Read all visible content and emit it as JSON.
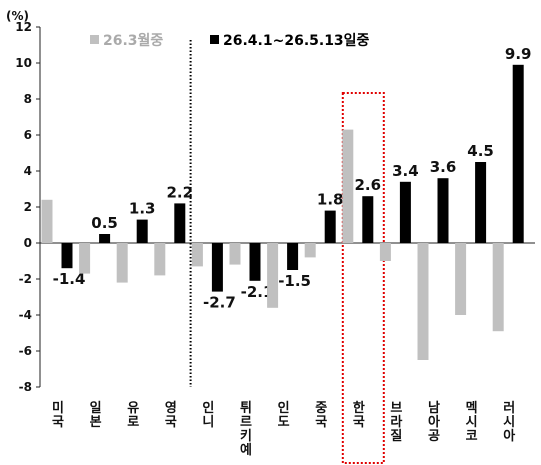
{
  "chart_data": {
    "type": "bar",
    "unit_label": "(%)",
    "categories": [
      [
        "미",
        "국"
      ],
      [
        "일",
        "본"
      ],
      [
        "유",
        "로"
      ],
      [
        "영",
        "국"
      ],
      [
        "인",
        "니"
      ],
      [
        "튀",
        "르",
        "키",
        "예"
      ],
      [
        "인",
        "도"
      ],
      [
        "중",
        "국"
      ],
      [
        "한",
        "국"
      ],
      [
        "브",
        "라",
        "질"
      ],
      [
        "남",
        "아",
        "공"
      ],
      [
        "멕",
        "시",
        "코"
      ],
      [
        "러",
        "시",
        "아"
      ]
    ],
    "series": [
      {
        "name": "26.3월중",
        "color": "#c0c0c0",
        "values": [
          2.4,
          -1.7,
          -2.2,
          -1.8,
          -1.3,
          -1.2,
          -3.6,
          -0.8,
          6.3,
          -1.0,
          -6.5,
          -4.0,
          -4.9
        ],
        "labels": []
      },
      {
        "name": "26.4.1~26.5.13일중",
        "color": "#000000",
        "values": [
          -1.4,
          0.5,
          1.3,
          2.2,
          -2.7,
          -2.1,
          -1.5,
          1.8,
          2.6,
          3.4,
          3.6,
          4.5,
          9.9
        ],
        "labels": [
          "-1.4",
          "0.5",
          "1.3",
          "2.2",
          "-2.7",
          "-2.1",
          "-1.5",
          "1.8",
          "2.6",
          "3.4",
          "3.6",
          "4.5",
          "9.9"
        ]
      }
    ],
    "ylim": [
      -8,
      12
    ],
    "yticks": [
      -8,
      -6,
      -4,
      -2,
      0,
      2,
      4,
      6,
      8,
      10,
      12
    ],
    "legend_position": "top",
    "annotations": {
      "divider_after_category": "영국",
      "highlight_category": "한국",
      "highlight_color": "#e00000"
    }
  }
}
